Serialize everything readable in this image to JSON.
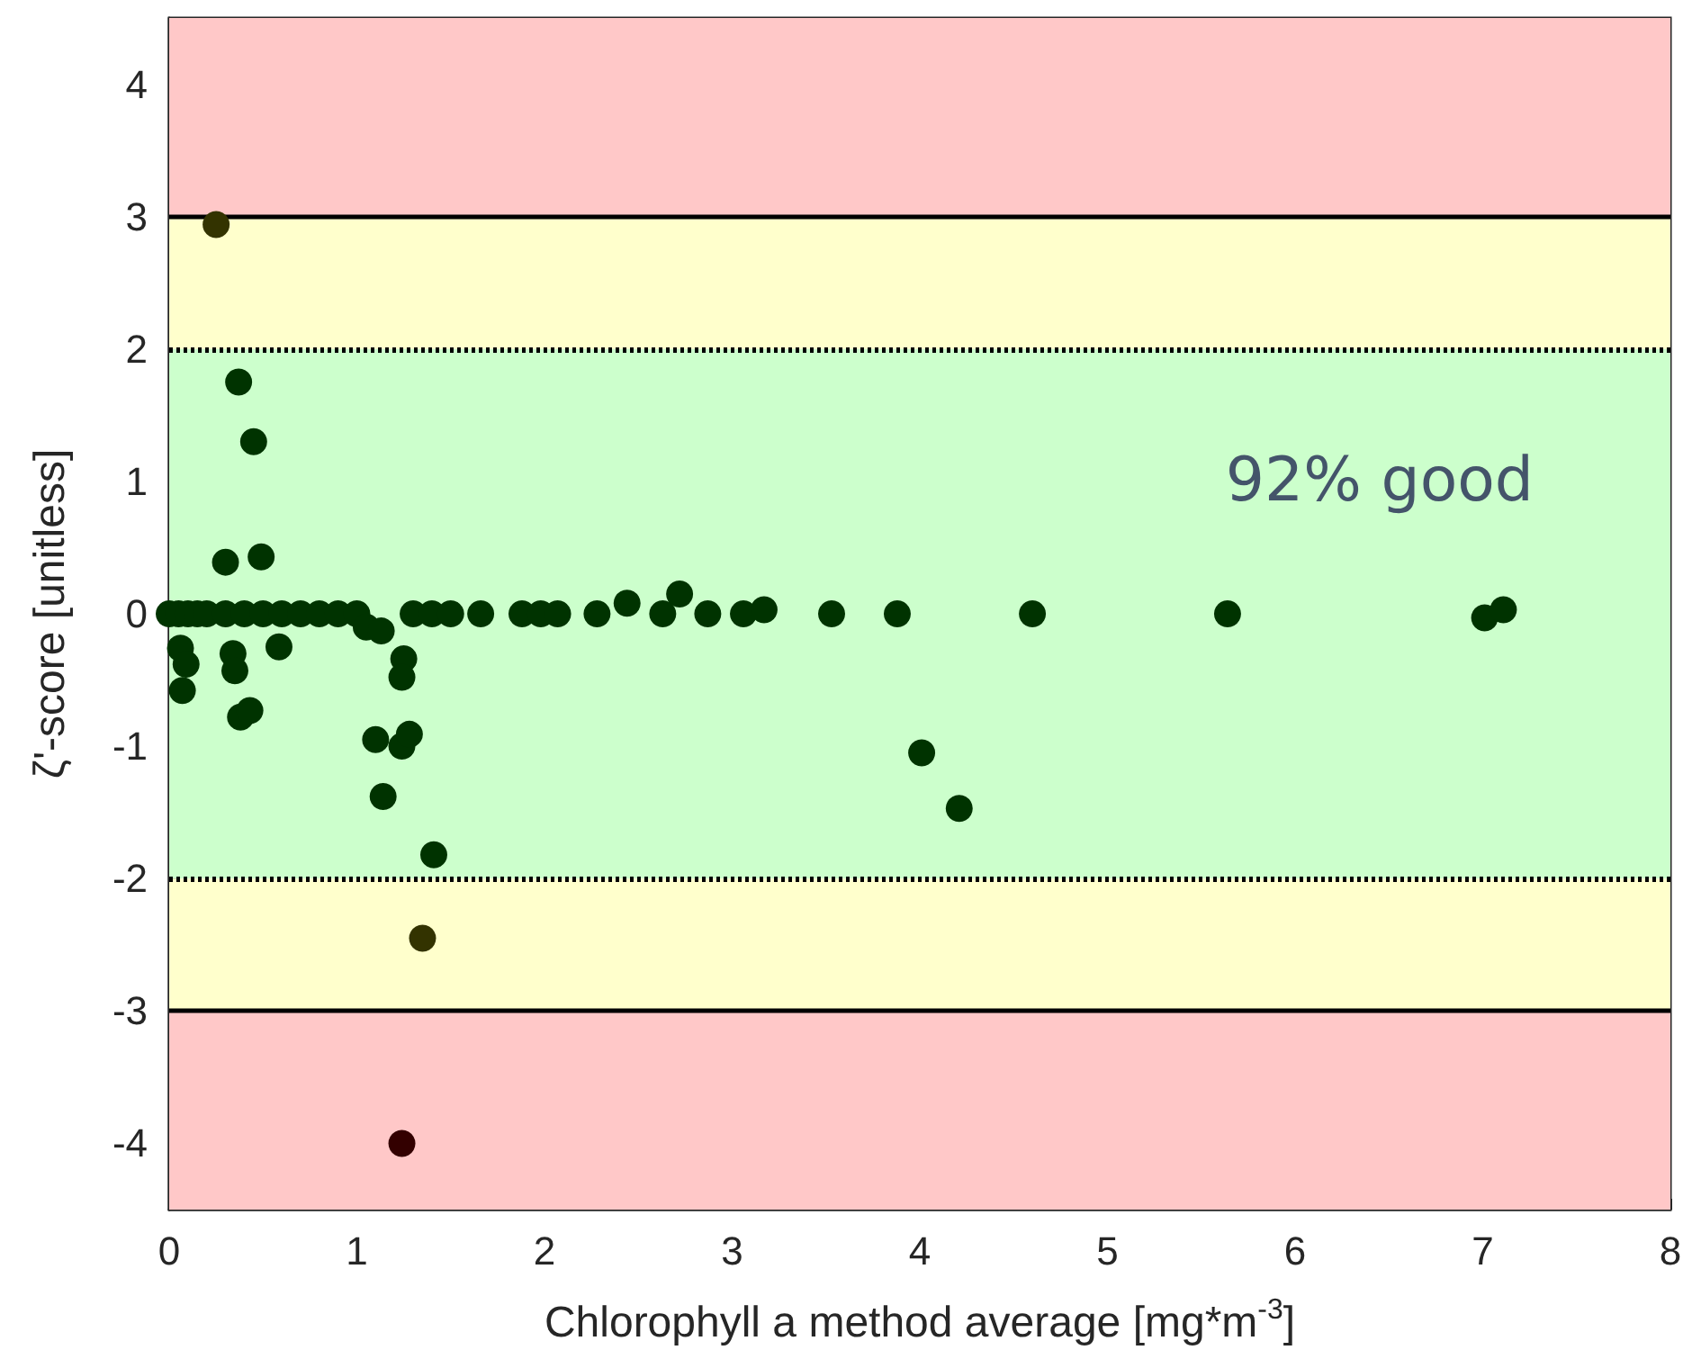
{
  "chart_data": {
    "type": "scatter",
    "xlabel": "Chlorophyll a method average [mg*m$^{-3}$]",
    "ylabel": "ζ'-score [unitless]",
    "xlim": [
      0,
      8
    ],
    "xticks": [
      0,
      1,
      2,
      3,
      4,
      5,
      6,
      7,
      8
    ],
    "ylim": [
      -4.5,
      4.5
    ],
    "yticks": [
      -4,
      -3,
      -2,
      -1,
      0,
      1,
      2,
      3,
      4
    ],
    "grid": false,
    "marker": "circle",
    "x": [
      0,
      0.05,
      0.1,
      0.15,
      0.2,
      0.3,
      0.4,
      0.5,
      0.6,
      0.7,
      0.8,
      0.9,
      1.0,
      1.3,
      1.4,
      1.5,
      1.66,
      1.88,
      1.98,
      2.07,
      2.28,
      2.63,
      2.87,
      3.06,
      3.53,
      3.88,
      4.6,
      5.64,
      7.01,
      7.11,
      2.44,
      2.72,
      3.17,
      0.25,
      0.37,
      0.45,
      0.3,
      0.49,
      0.06,
      0.09,
      0.07,
      0.34,
      0.35,
      0.38,
      0.43,
      0.585,
      1.05,
      1.13,
      1.25,
      1.24,
      1.1,
      1.24,
      1.28,
      1.14,
      1.41,
      4.01,
      4.21,
      1.35,
      1.24
    ],
    "values": [
      0,
      0,
      0,
      0,
      0,
      0,
      0,
      0,
      0,
      0,
      0,
      0,
      0,
      0,
      0,
      0,
      0,
      0,
      0,
      0,
      0,
      0,
      0,
      0,
      0,
      0,
      0,
      0,
      -0.03,
      0.03,
      0.08,
      0.15,
      0.03,
      2.94,
      1.75,
      1.3,
      0.39,
      0.43,
      -0.26,
      -0.38,
      -0.58,
      -0.3,
      -0.43,
      -0.78,
      -0.73,
      -0.25,
      -0.1,
      -0.13,
      -0.34,
      -0.48,
      -0.95,
      -1.0,
      -0.91,
      -1.38,
      -1.82,
      -1.05,
      -1.47,
      -2.45,
      -4.0
    ],
    "colors": [
      "#003300",
      "#003300",
      "#003300",
      "#003300",
      "#003300",
      "#003300",
      "#003300",
      "#003300",
      "#003300",
      "#003300",
      "#003300",
      "#003300",
      "#003300",
      "#003300",
      "#003300",
      "#003300",
      "#003300",
      "#003300",
      "#003300",
      "#003300",
      "#003300",
      "#003300",
      "#003300",
      "#003300",
      "#003300",
      "#003300",
      "#003300",
      "#003300",
      "#003300",
      "#003300",
      "#003300",
      "#003300",
      "#003300",
      "#333300",
      "#003300",
      "#003300",
      "#003300",
      "#003300",
      "#003300",
      "#003300",
      "#003300",
      "#003300",
      "#003300",
      "#003300",
      "#003300",
      "#003300",
      "#003300",
      "#003300",
      "#003300",
      "#003300",
      "#003300",
      "#003300",
      "#003300",
      "#003300",
      "#003300",
      "#003300",
      "#003300",
      "#333300",
      "#330000"
    ],
    "bands": [
      {
        "axis": "y",
        "from": 3,
        "to": 4.5,
        "color": "#ffc8c8"
      },
      {
        "axis": "y",
        "from": 2,
        "to": 3,
        "color": "#ffffcc"
      },
      {
        "axis": "y",
        "from": -2,
        "to": 2,
        "color": "#ccffcc"
      },
      {
        "axis": "y",
        "from": -3,
        "to": -2,
        "color": "#ffffcc"
      },
      {
        "axis": "y",
        "from": -4.5,
        "to": -3,
        "color": "#ffc8c8"
      }
    ],
    "ref_lines": [
      {
        "axis": "y",
        "value": 3,
        "color": "#000000",
        "line_style": "solid"
      },
      {
        "axis": "y",
        "value": 2,
        "color": "#000000",
        "line_style": "dotted"
      },
      {
        "axis": "y",
        "value": -2,
        "color": "#000000",
        "line_style": "dotted"
      },
      {
        "axis": "y",
        "value": -3,
        "color": "#000000",
        "line_style": "solid"
      }
    ],
    "annotations": [
      "92% good"
    ]
  }
}
